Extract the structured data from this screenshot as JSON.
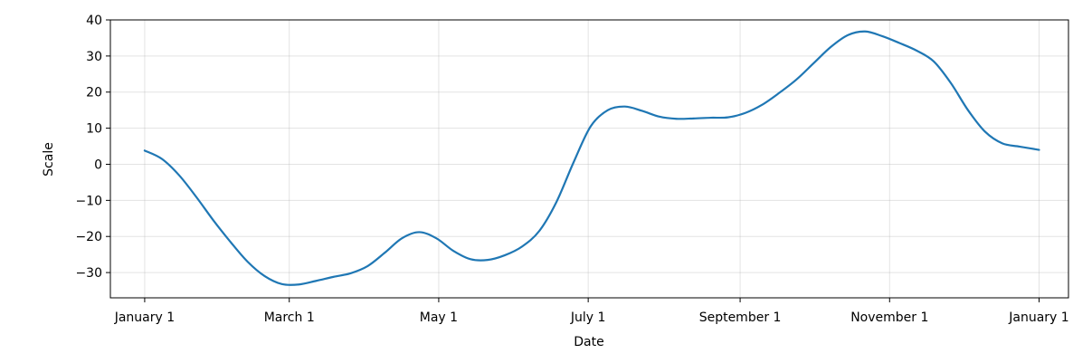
{
  "chart_data": {
    "type": "line",
    "title": "",
    "xlabel": "Date",
    "ylabel": "Scale",
    "x_ticks": [
      {
        "date": "2023-01-01",
        "label": "January 1"
      },
      {
        "date": "2023-03-01",
        "label": "March 1"
      },
      {
        "date": "2023-05-01",
        "label": "May 1"
      },
      {
        "date": "2023-07-01",
        "label": "July 1"
      },
      {
        "date": "2023-09-01",
        "label": "September 1"
      },
      {
        "date": "2023-11-01",
        "label": "November 1"
      },
      {
        "date": "2024-01-01",
        "label": "January 1"
      }
    ],
    "y_ticks": [
      -30,
      -20,
      -10,
      0,
      10,
      20,
      30,
      40
    ],
    "xlim": [
      "2022-12-18",
      "2024-01-13"
    ],
    "ylim": [
      -37,
      40
    ],
    "grid": true,
    "series": [
      {
        "color": "#1f77b4",
        "points": [
          {
            "x": "2023-01-01",
            "y": 3.8
          },
          {
            "x": "2023-01-08",
            "y": 1.5
          },
          {
            "x": "2023-01-15",
            "y": -3
          },
          {
            "x": "2023-01-22",
            "y": -9
          },
          {
            "x": "2023-01-29",
            "y": -15.5
          },
          {
            "x": "2023-02-05",
            "y": -21.5
          },
          {
            "x": "2023-02-12",
            "y": -27
          },
          {
            "x": "2023-02-19",
            "y": -31
          },
          {
            "x": "2023-02-26",
            "y": -33.2
          },
          {
            "x": "2023-03-05",
            "y": -33.3
          },
          {
            "x": "2023-03-12",
            "y": -32.3
          },
          {
            "x": "2023-03-19",
            "y": -31.2
          },
          {
            "x": "2023-03-26",
            "y": -30.2
          },
          {
            "x": "2023-04-02",
            "y": -28.2
          },
          {
            "x": "2023-04-09",
            "y": -24.5
          },
          {
            "x": "2023-04-16",
            "y": -20.5
          },
          {
            "x": "2023-04-23",
            "y": -18.8
          },
          {
            "x": "2023-04-30",
            "y": -20.5
          },
          {
            "x": "2023-05-07",
            "y": -24
          },
          {
            "x": "2023-05-14",
            "y": -26.3
          },
          {
            "x": "2023-05-21",
            "y": -26.5
          },
          {
            "x": "2023-05-28",
            "y": -25.2
          },
          {
            "x": "2023-06-04",
            "y": -22.8
          },
          {
            "x": "2023-06-11",
            "y": -18.5
          },
          {
            "x": "2023-06-18",
            "y": -10.5
          },
          {
            "x": "2023-06-25",
            "y": 0.5
          },
          {
            "x": "2023-07-02",
            "y": 10.5
          },
          {
            "x": "2023-07-09",
            "y": 15
          },
          {
            "x": "2023-07-16",
            "y": 16
          },
          {
            "x": "2023-07-23",
            "y": 14.8
          },
          {
            "x": "2023-07-30",
            "y": 13.2
          },
          {
            "x": "2023-08-06",
            "y": 12.6
          },
          {
            "x": "2023-08-13",
            "y": 12.7
          },
          {
            "x": "2023-08-20",
            "y": 12.9
          },
          {
            "x": "2023-08-27",
            "y": 13
          },
          {
            "x": "2023-09-03",
            "y": 14.2
          },
          {
            "x": "2023-09-10",
            "y": 16.5
          },
          {
            "x": "2023-09-17",
            "y": 19.8
          },
          {
            "x": "2023-09-24",
            "y": 23.5
          },
          {
            "x": "2023-10-01",
            "y": 28
          },
          {
            "x": "2023-10-08",
            "y": 32.5
          },
          {
            "x": "2023-10-15",
            "y": 35.8
          },
          {
            "x": "2023-10-22",
            "y": 36.8
          },
          {
            "x": "2023-10-29",
            "y": 35.5
          },
          {
            "x": "2023-11-05",
            "y": 33.6
          },
          {
            "x": "2023-11-12",
            "y": 31.5
          },
          {
            "x": "2023-11-19",
            "y": 28.5
          },
          {
            "x": "2023-11-26",
            "y": 22.5
          },
          {
            "x": "2023-12-03",
            "y": 15
          },
          {
            "x": "2023-12-10",
            "y": 9
          },
          {
            "x": "2023-12-17",
            "y": 5.8
          },
          {
            "x": "2023-12-24",
            "y": 4.9
          },
          {
            "x": "2024-01-01",
            "y": 4
          }
        ]
      }
    ]
  }
}
